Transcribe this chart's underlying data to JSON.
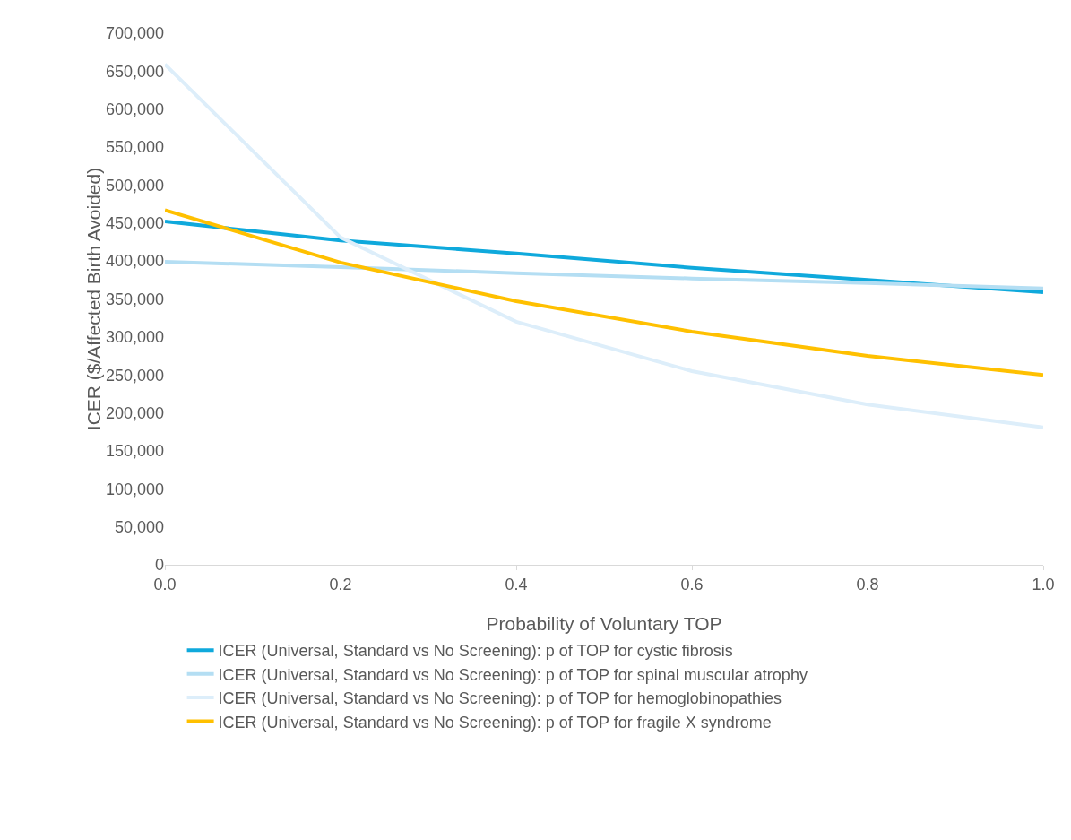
{
  "chart_data": {
    "type": "line",
    "xlabel": "Probability of Voluntary TOP",
    "ylabel": "ICER ($/Affected Birth Avoided)",
    "x": [
      0,
      0.2,
      0.4,
      0.6,
      0.8,
      1.0
    ],
    "series": [
      {
        "name": "ICER (Universal, Standard vs No Screening): p of TOP for cystic fibrosis",
        "color": "#0fa9dc",
        "values": [
          452000,
          427000,
          410000,
          391000,
          375000,
          359000
        ]
      },
      {
        "name": "ICER (Universal, Standard vs No Screening): p of TOP for spinal muscular atrophy",
        "color": "#b4def3",
        "values": [
          399000,
          392000,
          384000,
          377000,
          371000,
          364000
        ]
      },
      {
        "name": "ICER (Universal, Standard vs No Screening): p of TOP for hemoglobinopathies",
        "color": "#ddeefa",
        "values": [
          659000,
          431000,
          320000,
          255000,
          211000,
          181000
        ]
      },
      {
        "name": "ICER (Universal, Standard vs No Screening): p of TOP for fragile X syndrome",
        "color": "#ffc000",
        "values": [
          467000,
          398000,
          347000,
          307000,
          275000,
          250000
        ]
      }
    ],
    "xlim": [
      0,
      1.0
    ],
    "xticks": [
      {
        "value": 0,
        "label": "0.0"
      },
      0.2,
      0.4,
      0.6,
      0.8,
      {
        "value": 1.0,
        "label": "1.0"
      }
    ],
    "ylim": [
      0,
      700000
    ],
    "yticks": [
      0,
      {
        "value": 50000,
        "label": "50,000"
      },
      {
        "value": 100000,
        "label": "100,000"
      },
      {
        "value": 150000,
        "label": "150,000"
      },
      {
        "value": 200000,
        "label": "200,000"
      },
      {
        "value": 250000,
        "label": "250,000"
      },
      {
        "value": 300000,
        "label": "300,000"
      },
      {
        "value": 350000,
        "label": "350,000"
      },
      {
        "value": 400000,
        "label": "400,000"
      },
      {
        "value": 450000,
        "label": "450,000"
      },
      {
        "value": 500000,
        "label": "500,000"
      },
      {
        "value": 550000,
        "label": "550,000"
      },
      {
        "value": 600000,
        "label": "600,000"
      },
      {
        "value": 650000,
        "label": "650,000"
      },
      {
        "value": 700000,
        "label": "700,000"
      }
    ],
    "grid": false,
    "legend": "bottom",
    "marker": "none",
    "line_style": "solid"
  }
}
